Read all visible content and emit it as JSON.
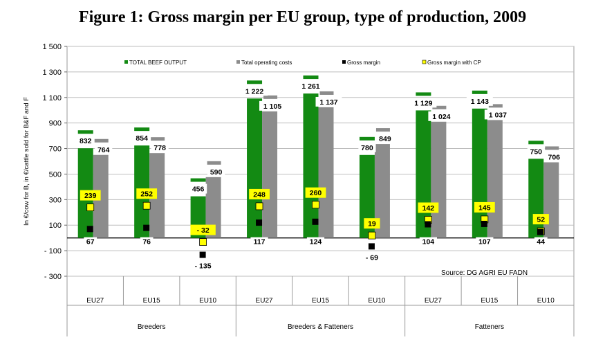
{
  "title": "Figure 1: Gross margin per EU group, type of production, 2009",
  "colors": {
    "output": "#138a13",
    "costs": "#8c8c8c",
    "gross_margin": "#000000",
    "gross_margin_cp": "#ffff00",
    "cp_label_bg": "#ffff00"
  },
  "chart_data": {
    "type": "bar",
    "title": "Figure 1: Gross margin per EU group, type of production, 2009",
    "ylabel": "In €/cow for B, in €/cattle sold for B&F and F",
    "ylim": [
      -300,
      1500
    ],
    "yticks": [
      "1 500",
      "1 300",
      "1 100",
      "900",
      "700",
      "500",
      "300",
      "100",
      "- 100",
      "- 300"
    ],
    "ytick_values": [
      1500,
      1300,
      1100,
      900,
      700,
      500,
      300,
      100,
      -100,
      -300
    ],
    "grid": true,
    "legend_position": "top",
    "categories": [
      "EU27",
      "EU15",
      "EU10",
      "EU27",
      "EU15",
      "EU10",
      "EU27",
      "EU15",
      "EU10"
    ],
    "groups": [
      {
        "label": "Breeders",
        "categories": [
          "EU27",
          "EU15",
          "EU10"
        ]
      },
      {
        "label": "Breeders & Fatteners",
        "categories": [
          "EU27",
          "EU15",
          "EU10"
        ]
      },
      {
        "label": "Fatteners",
        "categories": [
          "EU27",
          "EU15",
          "EU10"
        ]
      }
    ],
    "series": [
      {
        "name": "TOTAL BEEF OUTPUT",
        "kind": "bar",
        "values": [
          832,
          854,
          456,
          1222,
          1261,
          780,
          1129,
          1143,
          750
        ],
        "labels": [
          "832",
          "854",
          "456",
          "1 222",
          "1 261",
          "780",
          "1 129",
          "1 143",
          "750"
        ]
      },
      {
        "name": "Total operating costs",
        "kind": "bar",
        "values": [
          764,
          778,
          590,
          1105,
          1137,
          849,
          1024,
          1037,
          706
        ],
        "labels": [
          "764",
          "778",
          "590",
          "1 105",
          "1 137",
          "849",
          "1 024",
          "1 037",
          "706"
        ]
      },
      {
        "name": "Gross margin",
        "kind": "marker",
        "values": [
          67,
          76,
          -135,
          117,
          124,
          -69,
          104,
          107,
          44
        ],
        "labels": [
          "67",
          "76",
          "- 135",
          "117",
          "124",
          "- 69",
          "104",
          "107",
          "44"
        ]
      },
      {
        "name": "Gross margin with CP",
        "kind": "marker",
        "values": [
          239,
          252,
          -32,
          248,
          260,
          19,
          142,
          145,
          52
        ],
        "labels": [
          "239",
          "252",
          "- 32",
          "248",
          "260",
          "19",
          "142",
          "145",
          "52"
        ]
      }
    ],
    "annotation": "Source: DG AGRI EU FADN"
  }
}
